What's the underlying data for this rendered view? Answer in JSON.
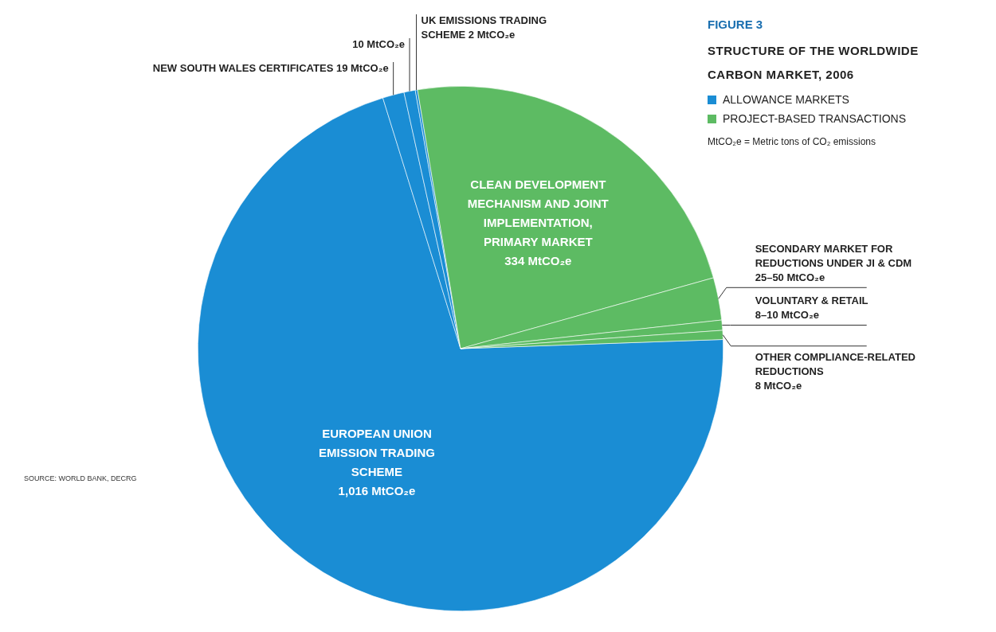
{
  "chart_data": {
    "type": "pie",
    "title": "FIGURE 3",
    "subtitle": "STRUCTURE OF THE WORLDWIDE CARBON MARKET, 2006",
    "categories": [
      "EUROPEAN UNION EMISSION TRADING SCHEME",
      "NEW SOUTH WALES CERTIFICATES",
      null,
      "UK EMISSIONS TRADING SCHEME",
      "CLEAN DEVELOPMENT MECHANISM AND JOINT IMPLEMENTATION, PRIMARY MARKET",
      "SECONDARY MARKET FOR REDUCTIONS UNDER JI & CDM",
      "VOLUNTARY & RETAIL",
      "OTHER COMPLIANCE-RELATED REDUCTIONS"
    ],
    "values": [
      1016,
      19,
      10,
      2,
      334,
      37.5,
      9,
      8
    ],
    "colors": [
      "#1a8dd4",
      "#1a8dd4",
      "#1a8dd4",
      "#1a8dd4",
      "#5dbb63",
      "#5dbb63",
      "#5dbb63",
      "#5dbb63"
    ],
    "value_labels": [
      "1,016 MtCO₂e",
      "19 MtCO₂e",
      "10 MtCO₂e",
      "2 MtCO₂e",
      "334 MtCO₂e",
      "25–50 MtCO₂e",
      "8–10 MtCO₂e",
      "8 MtCO₂e"
    ],
    "annotations": [
      "ALLOWANCE MARKETS",
      "PROJECT-BASED TRANSACTIONS",
      "MtCO₂e = Metric tons of CO₂ emissions",
      "SOURCE: WORLD BANK, DECRG"
    ]
  }
}
